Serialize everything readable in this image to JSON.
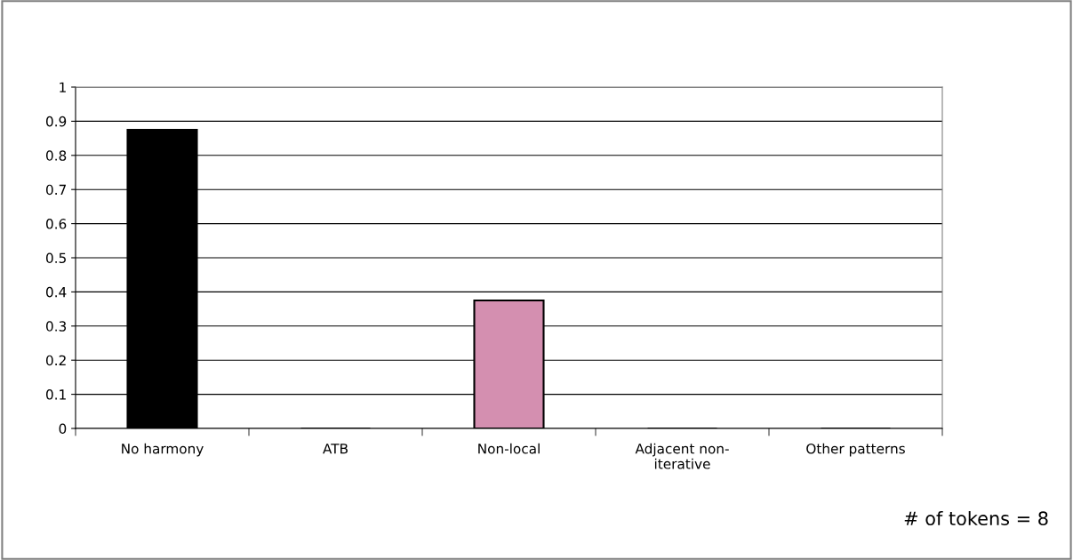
{
  "chart_data": {
    "type": "bar",
    "categories": [
      "No harmony",
      "ATB",
      "Non-local",
      "Adjacent non-\niterative",
      "Other patterns"
    ],
    "values": [
      0.875,
      0,
      0.375,
      0,
      0
    ],
    "colors": [
      "#000000",
      "#000000",
      "#d48fb0",
      "#000000",
      "#000000"
    ],
    "ylim": [
      0,
      1
    ],
    "yticks": [
      0,
      0.1,
      0.2,
      0.3,
      0.4,
      0.5,
      0.6,
      0.7,
      0.8,
      0.9,
      1
    ],
    "grid": "y",
    "legend": false,
    "annotations": [
      "# of tokens = 8"
    ]
  }
}
